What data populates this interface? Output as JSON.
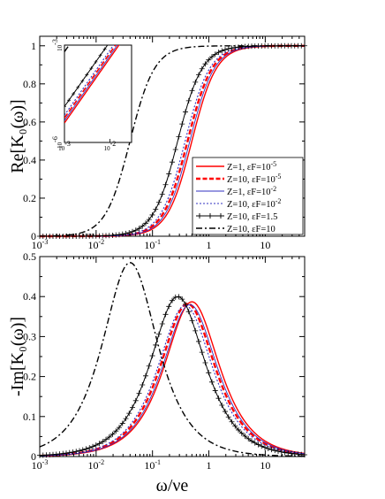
{
  "chart_data": [
    {
      "type": "line",
      "panel": "top",
      "ylabel": "Re[K₀(ω)]",
      "xlabel": "",
      "xscale": "log",
      "xlim": [
        0.001,
        50
      ],
      "ylim": [
        0,
        1.05
      ],
      "xticks": [
        "10-3",
        "10-2",
        "10-1",
        "1",
        "10"
      ],
      "yticks": [
        "0",
        "0.2",
        "0.4",
        "0.6",
        "0.8",
        "1"
      ],
      "legend_position": "bottom-right",
      "series": [
        {
          "name": "Z=1,  εF=10-5",
          "color": "#ff0000",
          "style": "solid",
          "width": 1.4,
          "center": 0.5,
          "x": [
            0.001,
            0.01,
            0.05,
            0.1,
            0.2,
            0.3,
            0.5,
            0.8,
            1,
            2,
            5,
            10,
            50
          ],
          "y": [
            0.0,
            0.0004,
            0.01,
            0.038,
            0.138,
            0.265,
            0.5,
            0.72,
            0.8,
            0.94,
            0.99,
            0.997,
            1.0
          ]
        },
        {
          "name": "Z=10,  εF=10-5",
          "color": "#ff0000",
          "style": "dashed",
          "width": 2.4,
          "center": 0.42,
          "x": [
            0.001,
            0.01,
            0.05,
            0.1,
            0.2,
            0.3,
            0.42,
            0.8,
            1,
            2,
            5,
            10,
            50
          ],
          "y": [
            0.0,
            0.0006,
            0.014,
            0.054,
            0.185,
            0.338,
            0.5,
            0.784,
            0.85,
            0.958,
            0.993,
            0.998,
            1.0
          ]
        },
        {
          "name": "Z=1,  εF=10-2",
          "color": "#3030c0",
          "style": "solid",
          "width": 0.9,
          "center": 0.46,
          "x": [
            0.001,
            0.01,
            0.05,
            0.1,
            0.2,
            0.3,
            0.46,
            0.8,
            1,
            2,
            5,
            10,
            50
          ],
          "y": [
            0.0,
            0.0005,
            0.012,
            0.045,
            0.159,
            0.298,
            0.5,
            0.751,
            0.825,
            0.95,
            0.992,
            0.998,
            1.0
          ]
        },
        {
          "name": "Z=10,  εF=10-2",
          "color": "#3030c0",
          "style": "dotted",
          "width": 1.1,
          "center": 0.38,
          "x": [
            0.001,
            0.01,
            0.05,
            0.1,
            0.2,
            0.3,
            0.38,
            0.8,
            1,
            2,
            5,
            10,
            50
          ],
          "y": [
            0.0,
            0.0007,
            0.017,
            0.065,
            0.217,
            0.384,
            0.5,
            0.816,
            0.874,
            0.965,
            0.994,
            0.999,
            1.0
          ]
        },
        {
          "name": "Z=10,  εF=1.5",
          "color": "#000000",
          "style": "plus",
          "width": 1.0,
          "center": 0.28,
          "x": [
            0.001,
            0.01,
            0.05,
            0.1,
            0.2,
            0.28,
            0.5,
            0.8,
            1,
            2,
            5,
            10,
            50
          ],
          "y": [
            0.0,
            0.0013,
            0.031,
            0.113,
            0.338,
            0.5,
            0.761,
            0.891,
            0.927,
            0.981,
            0.997,
            0.999,
            1.0
          ]
        },
        {
          "name": "Z=10,  εF=10",
          "color": "#000000",
          "style": "dashdot",
          "width": 1.4,
          "center": 0.04,
          "x": [
            0.001,
            0.005,
            0.01,
            0.02,
            0.04,
            0.08,
            0.1,
            0.2,
            0.5,
            1,
            10,
            50
          ],
          "y": [
            0.0006,
            0.015,
            0.059,
            0.2,
            0.5,
            0.8,
            0.862,
            0.962,
            0.994,
            0.998,
            1.0,
            1.0
          ]
        }
      ],
      "inset": {
        "xscale": "log",
        "yscale": "log",
        "xlim": [
          0.001,
          0.03
        ],
        "ylim": [
          1e-06,
          0.001
        ],
        "xticks": [
          "10-3",
          "10-2"
        ],
        "yticks": [
          "10-6",
          "10-3"
        ]
      }
    },
    {
      "type": "line",
      "panel": "bottom",
      "ylabel": "-Im[K₀(ω)]",
      "xlabel": "ω/νe",
      "xscale": "log",
      "xlim": [
        0.001,
        50
      ],
      "ylim": [
        0,
        0.5
      ],
      "xticks": [
        "10-3",
        "10-2",
        "10-1",
        "1",
        "10"
      ],
      "yticks": [
        "0",
        "0.1",
        "0.2",
        "0.3",
        "0.4",
        "0.5"
      ],
      "series": [
        {
          "name": "Z=1,  εF=10-5",
          "center": 0.5,
          "peak": 0.387
        },
        {
          "name": "Z=10,  εF=10-5",
          "center": 0.42,
          "peak": 0.382
        },
        {
          "name": "Z=1,  εF=10-2",
          "center": 0.46,
          "peak": 0.38
        },
        {
          "name": "Z=10,  εF=10-2",
          "center": 0.38,
          "peak": 0.378
        },
        {
          "name": "Z=10,  εF=1.5",
          "center": 0.28,
          "peak": 0.4
        },
        {
          "name": "Z=10,  εF=10",
          "center": 0.04,
          "peak": 0.485
        }
      ]
    }
  ]
}
